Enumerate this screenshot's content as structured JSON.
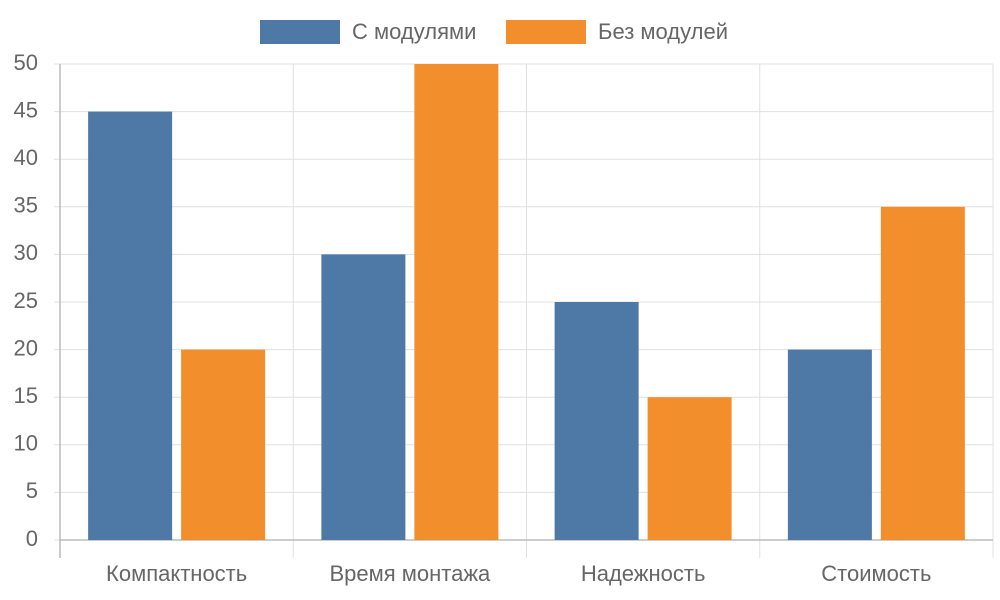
{
  "chart_data": {
    "type": "bar",
    "categories": [
      "Компактность",
      "Время монтажа",
      "Надежность",
      "Стоимость"
    ],
    "series": [
      {
        "name": "С модулями",
        "color": "#4e79a7",
        "values": [
          45,
          30,
          25,
          20
        ]
      },
      {
        "name": "Без модулей",
        "color": "#f28e2b",
        "values": [
          20,
          50,
          15,
          35
        ]
      }
    ],
    "ylim": [
      0,
      50
    ],
    "yticks": [
      0,
      5,
      10,
      15,
      20,
      25,
      30,
      35,
      40,
      45,
      50
    ],
    "grid": true,
    "legend": "top"
  }
}
